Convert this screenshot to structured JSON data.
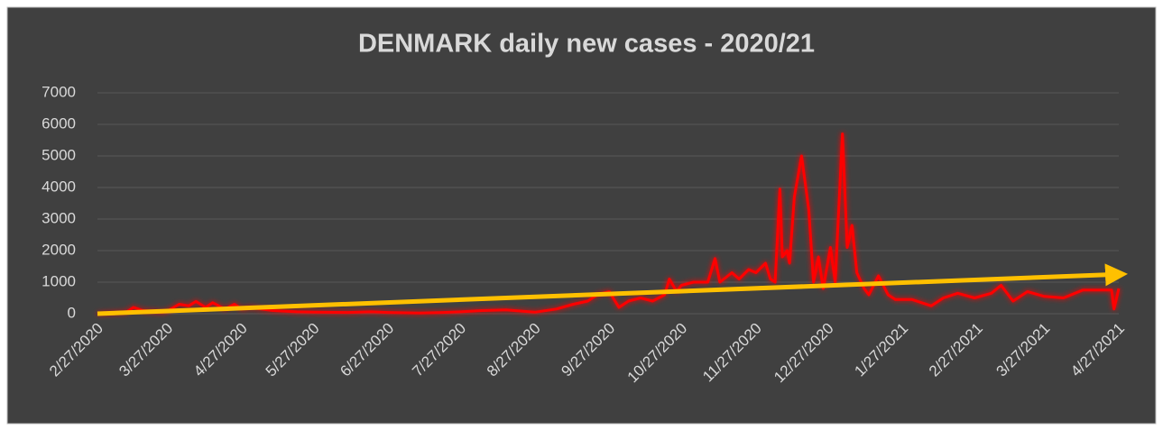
{
  "chart_data": {
    "type": "line",
    "title": "DENMARK daily new cases - 2020/21",
    "x": [
      "2/27/2020",
      "3/10/2020",
      "3/13/2020",
      "3/17/2020",
      "3/25/2020",
      "3/27/2020",
      "4/1/2020",
      "4/5/2020",
      "4/8/2020",
      "4/12/2020",
      "4/15/2020",
      "4/20/2020",
      "4/24/2020",
      "4/27/2020",
      "5/1/2020",
      "5/5/2020",
      "5/10/2020",
      "5/20/2020",
      "5/27/2020",
      "6/10/2020",
      "6/20/2020",
      "6/27/2020",
      "7/10/2020",
      "7/20/2020",
      "7/27/2020",
      "8/5/2020",
      "8/15/2020",
      "8/22/2020",
      "8/27/2020",
      "9/5/2020",
      "9/12/2020",
      "9/18/2020",
      "9/22/2020",
      "9/27/2020",
      "10/1/2020",
      "10/5/2020",
      "10/10/2020",
      "10/15/2020",
      "10/20/2020",
      "10/22/2020",
      "10/25/2020",
      "10/27/2020",
      "11/1/2020",
      "11/7/2020",
      "11/10/2020",
      "11/12/2020",
      "11/17/2020",
      "11/20/2020",
      "11/24/2020",
      "11/27/2020",
      "12/1/2020",
      "12/3/2020",
      "12/5/2020",
      "12/7/2020",
      "12/8/2020",
      "12/10/2020",
      "12/11/2020",
      "12/13/2020",
      "12/16/2020",
      "12/19/2020",
      "12/21/2020",
      "12/23/2020",
      "12/25/2020",
      "12/28/2020",
      "12/30/2020",
      "1/2/2021",
      "1/4/2021",
      "1/6/2021",
      "1/8/2021",
      "1/11/2021",
      "1/13/2021",
      "1/17/2021",
      "1/21/2021",
      "1/24/2021",
      "1/31/2021",
      "2/8/2021",
      "2/13/2021",
      "2/19/2021",
      "2/26/2021",
      "3/5/2021",
      "3/9/2021",
      "3/14/2021",
      "3/20/2021",
      "3/27/2021",
      "4/4/2021",
      "4/12/2021",
      "4/24/2021",
      "4/25/2021",
      "4/27/2021"
    ],
    "series": [
      {
        "color": "#ff0000",
        "values": [
          0,
          50,
          200,
          100,
          50,
          80,
          300,
          250,
          390,
          200,
          350,
          150,
          300,
          150,
          200,
          150,
          100,
          60,
          50,
          40,
          60,
          40,
          20,
          40,
          60,
          100,
          120,
          80,
          50,
          150,
          300,
          400,
          600,
          700,
          200,
          400,
          500,
          400,
          600,
          1100,
          700,
          900,
          1000,
          1000,
          1750,
          1000,
          1300,
          1100,
          1400,
          1300,
          1600,
          1100,
          1000,
          3950,
          1800,
          2000,
          1600,
          3700,
          5000,
          3300,
          1000,
          1800,
          800,
          2100,
          1000,
          5700,
          2100,
          2800,
          1300,
          800,
          600,
          1200,
          600,
          450,
          450,
          250,
          500,
          650,
          500,
          650,
          900,
          400,
          700,
          550,
          500,
          750,
          750,
          150,
          800
        ]
      }
    ],
    "trendline": {
      "color": "#ffc000",
      "x": [
        "2/27/2020",
        "4/27/2021"
      ],
      "values": [
        0,
        1250
      ]
    },
    "xlim": [
      "2/27/2020",
      "4/27/2021"
    ],
    "xticks": [
      "2/27/2020",
      "3/27/2020",
      "4/27/2020",
      "5/27/2020",
      "6/27/2020",
      "7/27/2020",
      "8/27/2020",
      "9/27/2020",
      "10/27/2020",
      "11/27/2020",
      "12/27/2020",
      "1/27/2021",
      "2/27/2021",
      "3/27/2021",
      "4/27/2021"
    ],
    "ylim": [
      0,
      7000
    ],
    "yticks": [
      0,
      1000,
      2000,
      3000,
      4000,
      5000,
      6000,
      7000
    ],
    "grid": true
  }
}
